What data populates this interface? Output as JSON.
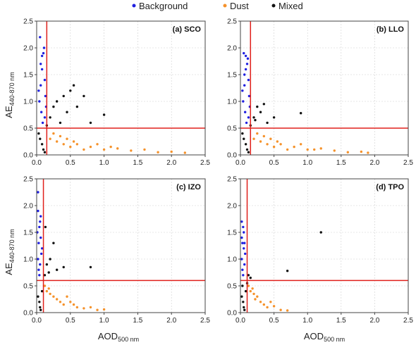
{
  "legend": {
    "items": [
      {
        "label": "Background",
        "color": "#1f1fe0"
      },
      {
        "label": "Dust",
        "color": "#f5922b"
      },
      {
        "label": "Mixed",
        "color": "#111111"
      }
    ],
    "placement": "top-center"
  },
  "axes": {
    "ylabel_main": "AE",
    "ylabel_sub": "440-870 nm",
    "xlabel_main": "AOD",
    "xlabel_sub": "500 nm"
  },
  "colors": {
    "threshold": "#e0201b",
    "background": "#1f1fe0",
    "dust": "#f5922b",
    "mixed": "#111111"
  },
  "chart_data": [
    {
      "type": "scatter",
      "title": "(a) SCO",
      "xlim": [
        0,
        2.5
      ],
      "ylim": [
        0,
        2.5
      ],
      "xticks": [
        "0.0",
        "0.5",
        "1.0",
        "1.5",
        "2.0",
        "2.5"
      ],
      "yticks": [
        "0.0",
        "0.5",
        "1.0",
        "1.5",
        "2.0",
        "2.5"
      ],
      "grid": true,
      "thresholds": {
        "aod": 0.15,
        "ae": 0.5
      },
      "series": [
        {
          "name": "Background",
          "points": [
            [
              0.04,
              1.0
            ],
            [
              0.06,
              1.3
            ],
            [
              0.08,
              1.6
            ],
            [
              0.05,
              2.2
            ],
            [
              0.1,
              1.9
            ],
            [
              0.12,
              1.4
            ],
            [
              0.07,
              0.8
            ],
            [
              0.13,
              1.1
            ],
            [
              0.09,
              0.6
            ],
            [
              0.11,
              2.0
            ],
            [
              0.06,
              1.7
            ],
            [
              0.14,
              0.9
            ],
            [
              0.03,
              1.2
            ],
            [
              0.08,
              1.85
            ],
            [
              0.12,
              0.7
            ]
          ]
        },
        {
          "name": "Dust",
          "points": [
            [
              0.2,
              0.3
            ],
            [
              0.3,
              0.25
            ],
            [
              0.4,
              0.2
            ],
            [
              0.5,
              0.15
            ],
            [
              0.6,
              0.2
            ],
            [
              0.7,
              0.1
            ],
            [
              0.8,
              0.15
            ],
            [
              1.0,
              0.1
            ],
            [
              1.2,
              0.12
            ],
            [
              1.4,
              0.08
            ],
            [
              1.6,
              0.1
            ],
            [
              1.8,
              0.05
            ],
            [
              2.0,
              0.06
            ],
            [
              2.2,
              0.04
            ],
            [
              0.25,
              0.4
            ],
            [
              0.35,
              0.35
            ],
            [
              0.45,
              0.3
            ],
            [
              0.9,
              0.2
            ],
            [
              1.1,
              0.15
            ],
            [
              0.55,
              0.25
            ]
          ]
        },
        {
          "name": "Mixed",
          "points": [
            [
              0.05,
              0.3
            ],
            [
              0.08,
              0.2
            ],
            [
              0.1,
              0.1
            ],
            [
              0.12,
              0.05
            ],
            [
              0.2,
              0.7
            ],
            [
              0.25,
              0.9
            ],
            [
              0.3,
              1.0
            ],
            [
              0.4,
              1.1
            ],
            [
              0.5,
              1.2
            ],
            [
              0.55,
              1.3
            ],
            [
              0.7,
              1.1
            ],
            [
              0.8,
              0.6
            ],
            [
              1.0,
              0.75
            ],
            [
              0.35,
              0.6
            ],
            [
              0.45,
              0.8
            ],
            [
              0.15,
              0.55
            ],
            [
              0.03,
              0.4
            ],
            [
              0.6,
              0.9
            ]
          ]
        }
      ]
    },
    {
      "type": "scatter",
      "title": "(b) LLO",
      "xlim": [
        0,
        2.5
      ],
      "ylim": [
        0,
        2.5
      ],
      "xticks": [
        "0.0",
        "0.5",
        "1.0",
        "1.5",
        "2.0",
        "2.5"
      ],
      "yticks": [
        "0.0",
        "0.5",
        "1.0",
        "1.5",
        "2.0",
        "2.5"
      ],
      "grid": true,
      "thresholds": {
        "aod": 0.15,
        "ae": 0.5
      },
      "series": [
        {
          "name": "Background",
          "points": [
            [
              0.04,
              1.0
            ],
            [
              0.06,
              1.3
            ],
            [
              0.08,
              1.6
            ],
            [
              0.05,
              1.9
            ],
            [
              0.1,
              1.7
            ],
            [
              0.12,
              1.4
            ],
            [
              0.07,
              0.8
            ],
            [
              0.13,
              1.1
            ],
            [
              0.09,
              0.6
            ],
            [
              0.11,
              1.8
            ],
            [
              0.06,
              1.5
            ],
            [
              0.14,
              0.9
            ],
            [
              0.03,
              1.2
            ],
            [
              0.08,
              1.85
            ],
            [
              0.12,
              0.7
            ]
          ]
        },
        {
          "name": "Dust",
          "points": [
            [
              0.2,
              0.3
            ],
            [
              0.3,
              0.25
            ],
            [
              0.4,
              0.2
            ],
            [
              0.5,
              0.15
            ],
            [
              0.6,
              0.2
            ],
            [
              0.7,
              0.1
            ],
            [
              0.8,
              0.15
            ],
            [
              1.0,
              0.1
            ],
            [
              1.2,
              0.12
            ],
            [
              1.4,
              0.08
            ],
            [
              1.6,
              0.05
            ],
            [
              1.8,
              0.06
            ],
            [
              1.9,
              0.04
            ],
            [
              0.25,
              0.4
            ],
            [
              0.35,
              0.35
            ],
            [
              0.45,
              0.3
            ],
            [
              0.9,
              0.2
            ],
            [
              1.1,
              0.1
            ],
            [
              0.55,
              0.25
            ]
          ]
        },
        {
          "name": "Mixed",
          "points": [
            [
              0.05,
              0.3
            ],
            [
              0.08,
              0.2
            ],
            [
              0.1,
              0.1
            ],
            [
              0.12,
              0.05
            ],
            [
              0.2,
              0.7
            ],
            [
              0.25,
              0.9
            ],
            [
              0.3,
              0.8
            ],
            [
              0.35,
              0.95
            ],
            [
              0.4,
              0.6
            ],
            [
              0.5,
              0.7
            ],
            [
              0.9,
              0.78
            ],
            [
              0.15,
              0.55
            ],
            [
              0.03,
              0.4
            ],
            [
              0.22,
              0.65
            ]
          ]
        }
      ]
    },
    {
      "type": "scatter",
      "title": "(c) IZO",
      "xlim": [
        0,
        2.5
      ],
      "ylim": [
        0,
        2.5
      ],
      "xticks": [
        "0.0",
        "0.5",
        "1.0",
        "1.5",
        "2.0",
        "2.5"
      ],
      "yticks": [
        "0.0",
        "0.5",
        "1.0",
        "1.5",
        "2.0",
        "2.5"
      ],
      "grid": true,
      "thresholds": {
        "aod": 0.1,
        "ae": 0.6
      },
      "series": [
        {
          "name": "Background",
          "points": [
            [
              0.02,
              1.0
            ],
            [
              0.03,
              1.3
            ],
            [
              0.04,
              1.6
            ],
            [
              0.02,
              1.9
            ],
            [
              0.05,
              1.7
            ],
            [
              0.06,
              1.4
            ],
            [
              0.03,
              0.8
            ],
            [
              0.07,
              1.1
            ],
            [
              0.04,
              0.7
            ],
            [
              0.08,
              1.2
            ],
            [
              0.02,
              2.25
            ],
            [
              0.05,
              0.9
            ],
            [
              0.01,
              1.5
            ],
            [
              0.06,
              1.8
            ]
          ]
        },
        {
          "name": "Dust",
          "points": [
            [
              0.12,
              0.5
            ],
            [
              0.15,
              0.4
            ],
            [
              0.2,
              0.35
            ],
            [
              0.25,
              0.3
            ],
            [
              0.3,
              0.25
            ],
            [
              0.35,
              0.2
            ],
            [
              0.4,
              0.15
            ],
            [
              0.5,
              0.2
            ],
            [
              0.6,
              0.1
            ],
            [
              0.7,
              0.08
            ],
            [
              0.8,
              0.1
            ],
            [
              0.9,
              0.05
            ],
            [
              1.0,
              0.06
            ],
            [
              0.45,
              0.3
            ],
            [
              0.55,
              0.15
            ],
            [
              0.18,
              0.45
            ]
          ]
        },
        {
          "name": "Mixed",
          "points": [
            [
              0.02,
              0.3
            ],
            [
              0.04,
              0.2
            ],
            [
              0.05,
              0.1
            ],
            [
              0.06,
              0.05
            ],
            [
              0.12,
              0.7
            ],
            [
              0.15,
              0.9
            ],
            [
              0.2,
              1.0
            ],
            [
              0.25,
              1.3
            ],
            [
              0.3,
              0.8
            ],
            [
              0.4,
              0.85
            ],
            [
              0.8,
              0.85
            ],
            [
              0.13,
              1.6
            ],
            [
              0.08,
              0.4
            ],
            [
              0.18,
              0.75
            ]
          ]
        }
      ]
    },
    {
      "type": "scatter",
      "title": "(d) TPO",
      "xlim": [
        0,
        2.5
      ],
      "ylim": [
        0,
        2.5
      ],
      "xticks": [
        "0.0",
        "0.5",
        "1.0",
        "1.5",
        "2.0",
        "2.5"
      ],
      "yticks": [
        "0.0",
        "0.5",
        "1.0",
        "1.5",
        "2.0",
        "2.5"
      ],
      "grid": true,
      "thresholds": {
        "aod": 0.1,
        "ae": 0.6
      },
      "series": [
        {
          "name": "Background",
          "points": [
            [
              0.02,
              1.0
            ],
            [
              0.03,
              1.3
            ],
            [
              0.04,
              1.6
            ],
            [
              0.02,
              1.4
            ],
            [
              0.05,
              1.2
            ],
            [
              0.06,
              0.9
            ],
            [
              0.03,
              0.8
            ],
            [
              0.07,
              1.1
            ],
            [
              0.04,
              0.7
            ],
            [
              0.05,
              1.5
            ],
            [
              0.02,
              1.7
            ],
            [
              0.06,
              1.3
            ]
          ]
        },
        {
          "name": "Dust",
          "points": [
            [
              0.12,
              0.5
            ],
            [
              0.15,
              0.4
            ],
            [
              0.2,
              0.35
            ],
            [
              0.25,
              0.3
            ],
            [
              0.3,
              0.2
            ],
            [
              0.35,
              0.15
            ],
            [
              0.4,
              0.1
            ],
            [
              0.5,
              0.12
            ],
            [
              0.6,
              0.05
            ],
            [
              0.7,
              0.04
            ],
            [
              0.45,
              0.2
            ],
            [
              0.18,
              0.45
            ],
            [
              0.22,
              0.25
            ]
          ]
        },
        {
          "name": "Mixed",
          "points": [
            [
              0.02,
              0.3
            ],
            [
              0.04,
              0.2
            ],
            [
              0.05,
              0.1
            ],
            [
              0.06,
              0.05
            ],
            [
              0.12,
              0.7
            ],
            [
              0.15,
              0.65
            ],
            [
              0.7,
              0.78
            ],
            [
              1.2,
              1.5
            ],
            [
              0.08,
              0.4
            ],
            [
              0.1,
              0.55
            ],
            [
              0.03,
              0.5
            ]
          ]
        }
      ]
    }
  ]
}
